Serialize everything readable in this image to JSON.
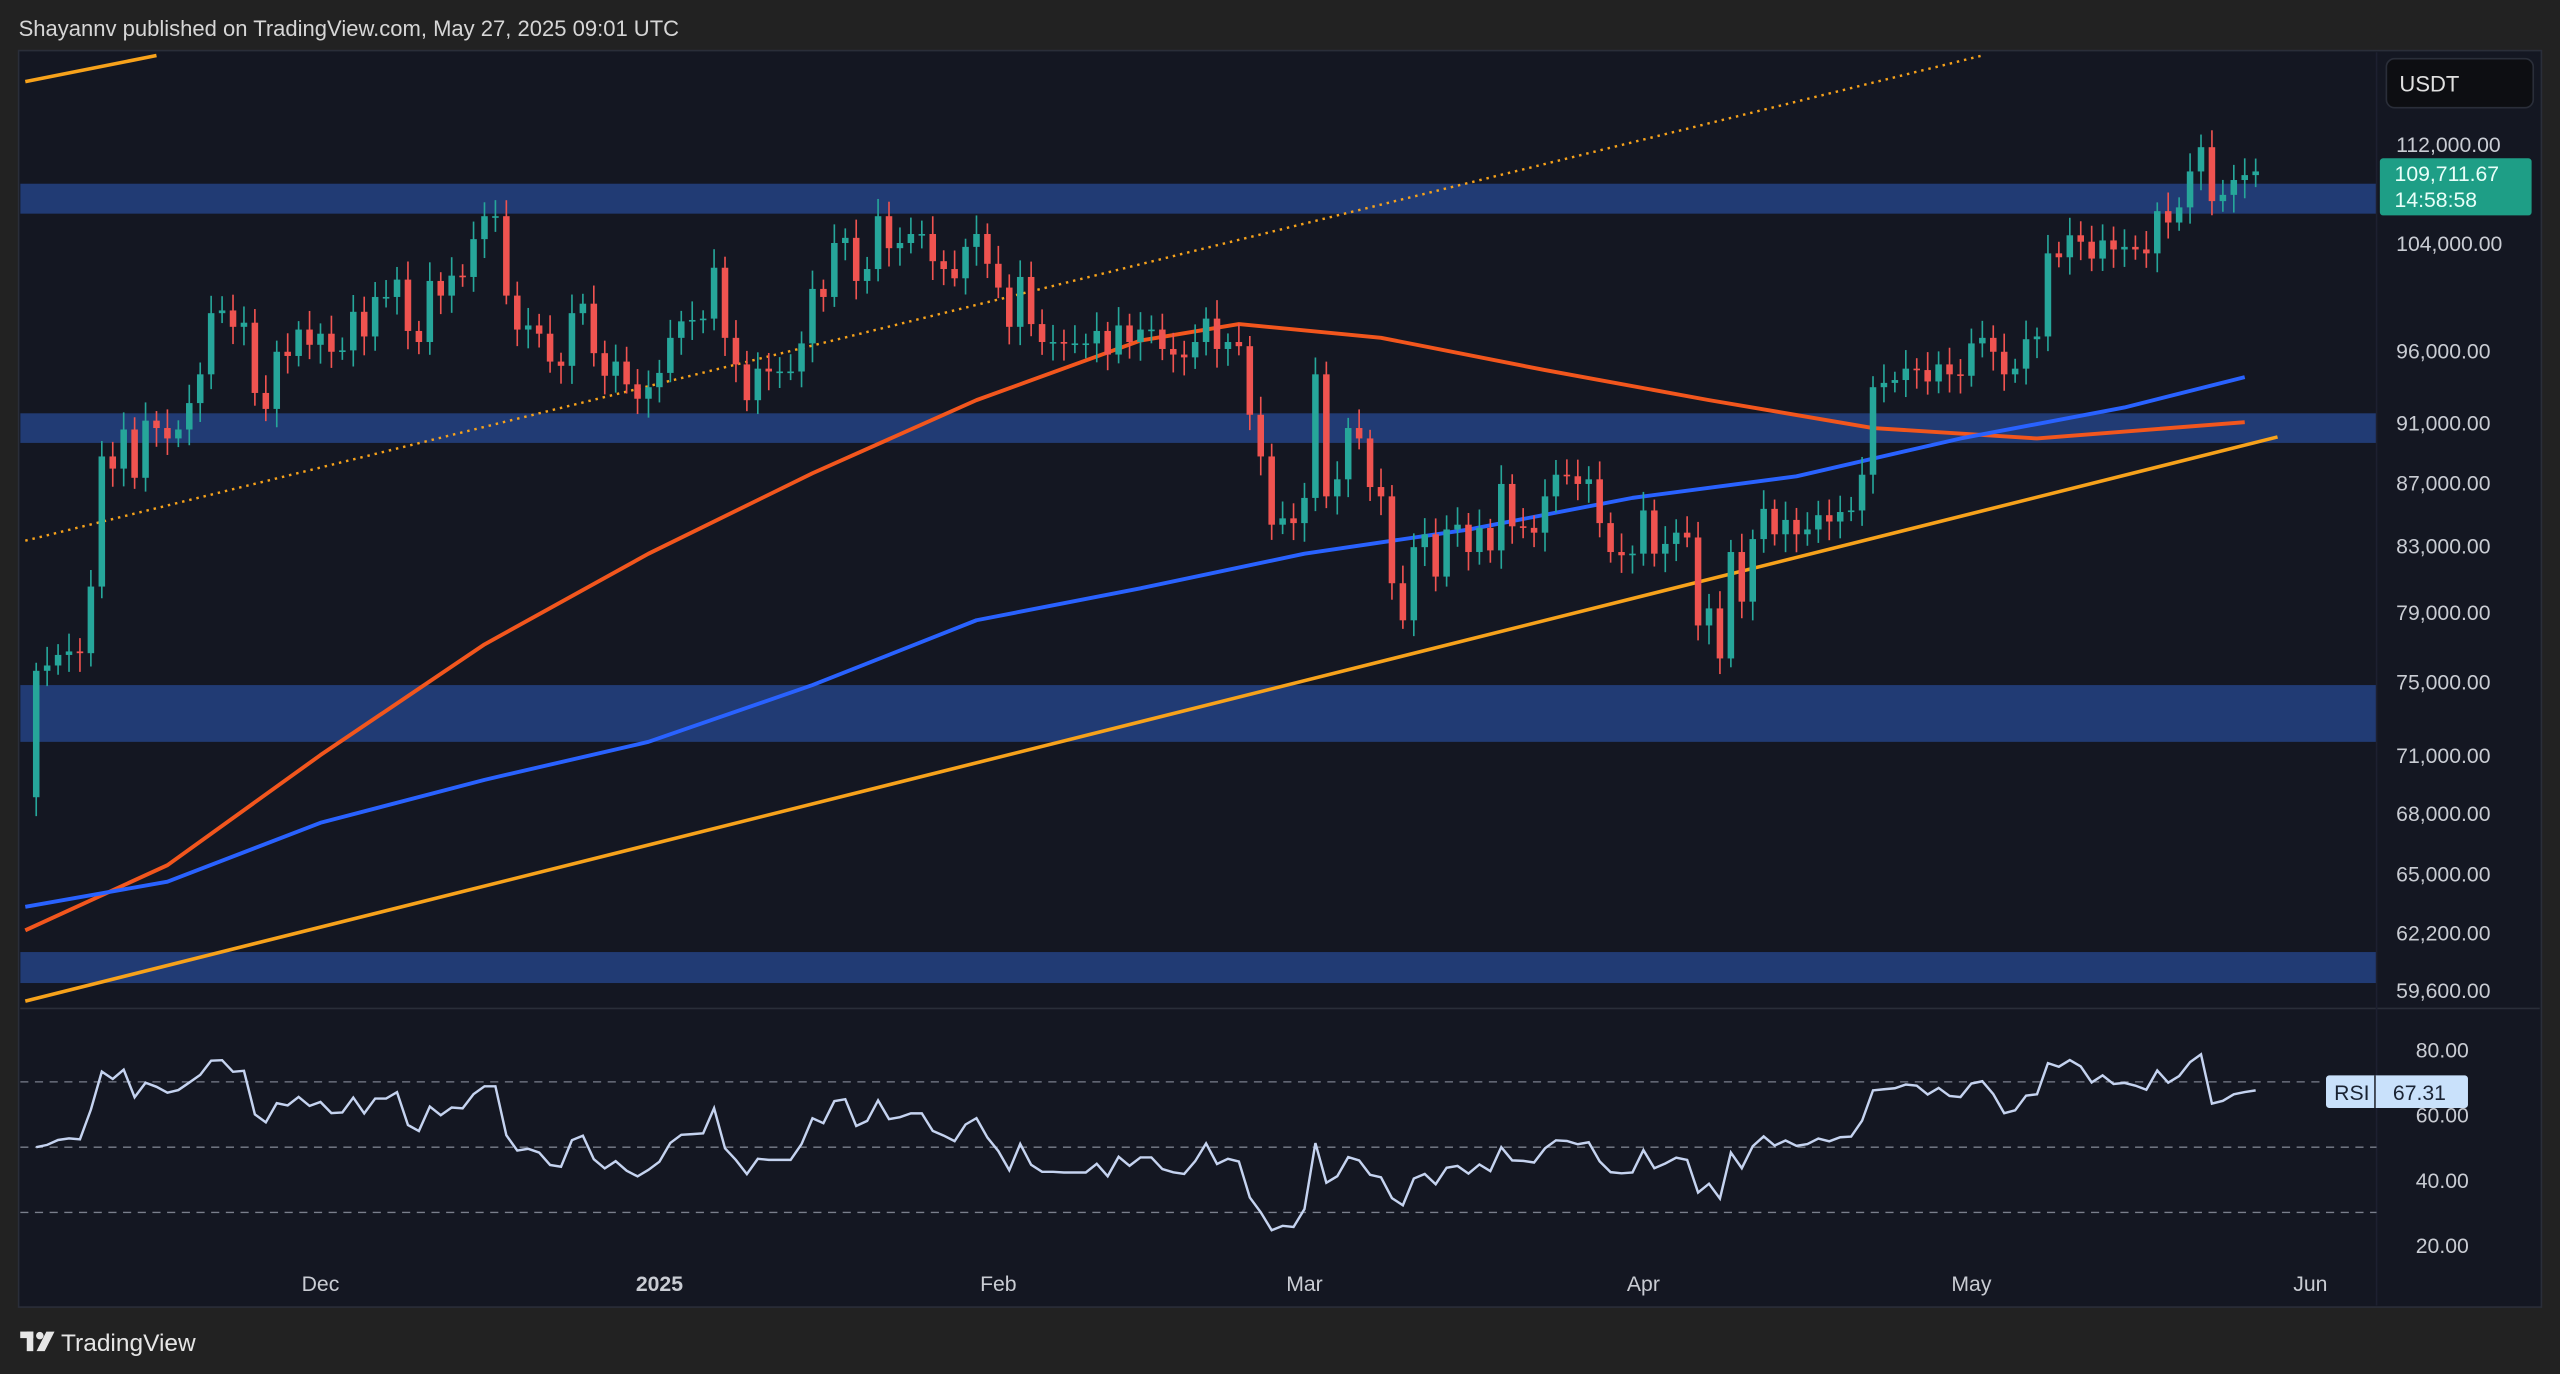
{
  "header": {
    "published": "Shayannv published on TradingView.com, May 27, 2025 09:01 UTC"
  },
  "footer": {
    "brand": "TradingView",
    "logo_icon": "tradingview-logo-icon"
  },
  "price_axis": {
    "currency_button": "USDT"
  },
  "last_price": {
    "value": "109,711.67",
    "countdown": "14:58:58",
    "color": "#1e9e86"
  },
  "rsi": {
    "label": "RSI",
    "value": "67.31"
  },
  "colors": {
    "up": "#26a69a",
    "down": "#ef5350",
    "zone": "#213b74",
    "ma_fast": "#f2561d",
    "ma_slow": "#2962ff",
    "trendline": "#f7a21b",
    "rsi_line": "#c5d3f0",
    "background": "#141722"
  },
  "chart_data": {
    "type": "candlestick",
    "title": "",
    "xlabel": "",
    "ylabel": "USDT",
    "y_scale": "log",
    "ylim": [
      58000,
      124000
    ],
    "start_date": "2024-11-05",
    "closes_k": [
      75.6,
      75.9,
      76.5,
      76.7,
      76.6,
      80.5,
      88.7,
      87.9,
      90.5,
      87.3,
      91.1,
      90.6,
      89.9,
      90.5,
      92.3,
      94.3,
      98.7,
      98.9,
      97.7,
      98.0,
      93.0,
      91.9,
      95.9,
      95.6,
      97.5,
      96.4,
      97.2,
      95.9,
      96.0,
      98.8,
      97.0,
      99.9,
      99.9,
      101.2,
      97.4,
      96.6,
      101.1,
      100.0,
      101.5,
      101.4,
      104.3,
      106.1,
      106.1,
      100.0,
      97.5,
      97.8,
      97.2,
      95.2,
      94.9,
      98.7,
      99.4,
      95.8,
      94.2,
      95.2,
      93.6,
      92.6,
      93.4,
      94.4,
      96.9,
      98.1,
      98.2,
      98.3,
      102.1,
      96.9,
      95.0,
      92.5,
      94.7,
      94.5,
      94.5,
      94.5,
      96.5,
      100.5,
      99.9,
      104.0,
      104.4,
      101.1,
      102.0,
      106.1,
      103.6,
      104.0,
      104.7,
      104.7,
      102.6,
      102.0,
      101.3,
      103.7,
      104.7,
      102.4,
      100.6,
      97.7,
      101.4,
      97.9,
      96.6,
      96.6,
      96.5,
      96.5,
      96.5,
      97.4,
      95.7,
      97.8,
      96.6,
      97.5,
      97.5,
      96.1,
      95.7,
      95.5,
      96.6,
      98.3,
      96.1,
      96.6,
      96.3,
      91.5,
      88.7,
      84.3,
      84.7,
      84.4,
      86.0,
      94.3,
      86.1,
      87.2,
      90.6,
      89.9,
      86.7,
      86.1,
      80.7,
      78.5,
      82.9,
      83.7,
      81.1,
      84.0,
      84.3,
      82.6,
      84.1,
      82.7,
      86.9,
      84.2,
      84.1,
      83.8,
      86.1,
      87.5,
      87.4,
      86.9,
      87.2,
      84.4,
      82.6,
      82.4,
      82.5,
      85.2,
      82.5,
      83.1,
      83.8,
      83.5,
      78.2,
      79.2,
      76.3,
      82.6,
      79.6,
      83.4,
      85.3,
      83.7,
      84.6,
      83.7,
      84.0,
      84.9,
      84.5,
      85.1,
      85.2,
      87.5,
      93.4,
      93.7,
      93.9,
      94.7,
      94.6,
      93.8,
      95.0,
      94.3,
      94.2,
      96.5,
      96.9,
      95.9,
      94.3,
      94.7,
      96.8,
      97.0,
      103.2,
      102.9,
      104.6,
      104.1,
      102.8,
      104.2,
      103.5,
      103.7,
      103.5,
      103.2,
      106.5,
      105.6,
      106.8,
      109.7,
      111.7,
      107.3,
      107.8,
      109.0,
      109.4,
      109.7
    ],
    "first_open_k": 68.8,
    "moving_averages": [
      {
        "name": "MA fast",
        "color_key": "ma_fast",
        "points": [
          [
            "2024-11-04",
            62300
          ],
          [
            "2024-11-17",
            65400
          ],
          [
            "2024-12-01",
            71000
          ],
          [
            "2024-12-16",
            77100
          ],
          [
            "2024-12-31",
            82500
          ],
          [
            "2025-01-15",
            87600
          ],
          [
            "2025-01-30",
            92500
          ],
          [
            "2025-02-14",
            96700
          ],
          [
            "2025-02-23",
            97900
          ],
          [
            "2025-03-08",
            96900
          ],
          [
            "2025-03-23",
            94600
          ],
          [
            "2025-04-07",
            92500
          ],
          [
            "2025-04-22",
            90600
          ],
          [
            "2025-05-07",
            89900
          ],
          [
            "2025-05-26",
            91000
          ]
        ]
      },
      {
        "name": "MA slow",
        "color_key": "ma_slow",
        "points": [
          [
            "2024-11-04",
            63400
          ],
          [
            "2024-11-17",
            64600
          ],
          [
            "2024-12-01",
            67500
          ],
          [
            "2024-12-16",
            69700
          ],
          [
            "2024-12-31",
            71700
          ],
          [
            "2025-01-15",
            74800
          ],
          [
            "2025-01-30",
            78500
          ],
          [
            "2025-02-14",
            80400
          ],
          [
            "2025-03-01",
            82500
          ],
          [
            "2025-03-16",
            84000
          ],
          [
            "2025-03-31",
            86000
          ],
          [
            "2025-04-15",
            87400
          ],
          [
            "2025-04-30",
            89900
          ],
          [
            "2025-05-15",
            92000
          ],
          [
            "2025-05-26",
            94100
          ]
        ]
      }
    ],
    "trendlines": [
      {
        "style": "solid",
        "points": [
          [
            "2024-11-04",
            59100
          ],
          [
            "2025-05-29",
            90000
          ]
        ]
      },
      {
        "style": "solid",
        "points": [
          [
            "2024-11-04",
            117300
          ],
          [
            "2024-11-16",
            119600
          ]
        ]
      },
      {
        "style": "dotted",
        "points": [
          [
            "2024-11-04",
            83300
          ],
          [
            "2025-05-02",
            119600
          ]
        ]
      }
    ],
    "zones": [
      [
        106300,
        108700
      ],
      [
        89600,
        91600
      ],
      [
        71700,
        74800
      ],
      [
        59900,
        61300
      ]
    ],
    "y_ticks": [
      "112,000.00",
      "104,000.00",
      "96,000.00",
      "91,000.00",
      "87,000.00",
      "83,000.00",
      "79,000.00",
      "75,000.00",
      "71,000.00",
      "68,000.00",
      "65,000.00",
      "62,200.00",
      "59,600.00"
    ],
    "y_tick_values": [
      112000,
      104000,
      96000,
      91000,
      87000,
      83000,
      79000,
      75000,
      71000,
      68000,
      65000,
      62200,
      59600
    ],
    "x_ticks": [
      {
        "label": "Dec",
        "date": "2024-12-01"
      },
      {
        "label": "2025",
        "date": "2025-01-01",
        "bold": true
      },
      {
        "label": "Feb",
        "date": "2025-02-01"
      },
      {
        "label": "Mar",
        "date": "2025-03-01"
      },
      {
        "label": "Apr",
        "date": "2025-04-01"
      },
      {
        "label": "May",
        "date": "2025-05-01"
      },
      {
        "label": "Jun",
        "date": "2025-06-01"
      }
    ],
    "rsi_pane": {
      "period": 14,
      "ticks": [
        "80.00",
        "60.00",
        "40.00",
        "20.00"
      ],
      "tick_values": [
        80,
        60,
        40,
        20
      ],
      "bands": [
        70,
        50,
        30
      ],
      "ylim": [
        10,
        90
      ]
    }
  }
}
